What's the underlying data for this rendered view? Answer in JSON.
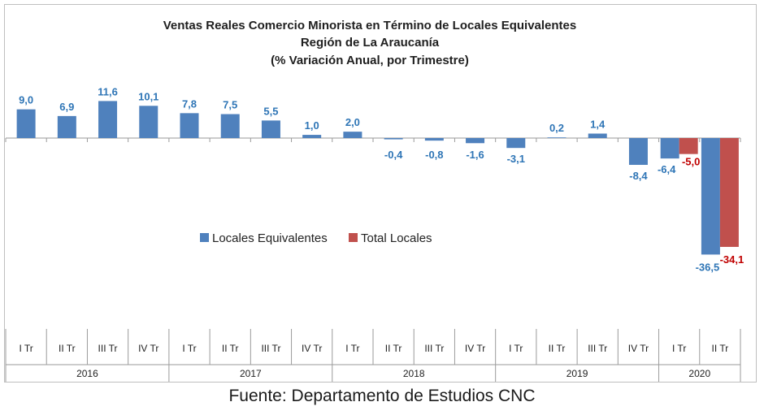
{
  "chart_data": {
    "type": "bar",
    "title": [
      "Ventas Reales Comercio Minorista  en Término de Locales Equivalentes",
      "Región de La Araucanía",
      "(% Variación Anual, por Trimestre)"
    ],
    "categories": [
      "I Tr",
      "II Tr",
      "III Tr",
      "IV Tr",
      "I Tr",
      "II Tr",
      "III Tr",
      "IV Tr",
      "I Tr",
      "II Tr",
      "III Tr",
      "IV Tr",
      "I Tr",
      "II Tr",
      "III Tr",
      "IV Tr",
      "I Tr",
      "II Tr"
    ],
    "years": [
      {
        "label": "2016",
        "count": 4
      },
      {
        "label": "2017",
        "count": 4
      },
      {
        "label": "2018",
        "count": 4
      },
      {
        "label": "2019",
        "count": 4
      },
      {
        "label": "2020",
        "count": 2
      }
    ],
    "series": [
      {
        "name": "Locales Equivalentes",
        "color": "#4f81bd",
        "label_color": "#2e75b6",
        "values": [
          9.0,
          6.9,
          11.6,
          10.1,
          7.8,
          7.5,
          5.5,
          1.0,
          2.0,
          -0.4,
          -0.8,
          -1.6,
          -3.1,
          0.2,
          1.4,
          -8.4,
          -6.4,
          -36.5
        ],
        "labels": [
          "9,0",
          "6,9",
          "11,6",
          "10,1",
          "7,8",
          "7,5",
          "5,5",
          "1,0",
          "2,0",
          "-0,4",
          "-0,8",
          "-1,6",
          "-3,1",
          "0,2",
          "1,4",
          "-8,4",
          "-6,4",
          "-36,5"
        ]
      },
      {
        "name": "Total Locales",
        "color": "#c0504d",
        "label_color": "#c00000",
        "values": [
          null,
          null,
          null,
          null,
          null,
          null,
          null,
          null,
          null,
          null,
          null,
          null,
          null,
          null,
          null,
          null,
          -5.0,
          -34.1
        ],
        "labels": [
          "",
          "",
          "",
          "",
          "",
          "",
          "",
          "",
          "",
          "",
          "",
          "",
          "",
          "",
          "",
          "",
          "-5,0",
          "-34,1"
        ]
      }
    ],
    "ylim": [
      -40,
      12
    ],
    "grid": false,
    "legend_position": "center"
  },
  "source": "Fuente: Departamento de Estudios CNC"
}
